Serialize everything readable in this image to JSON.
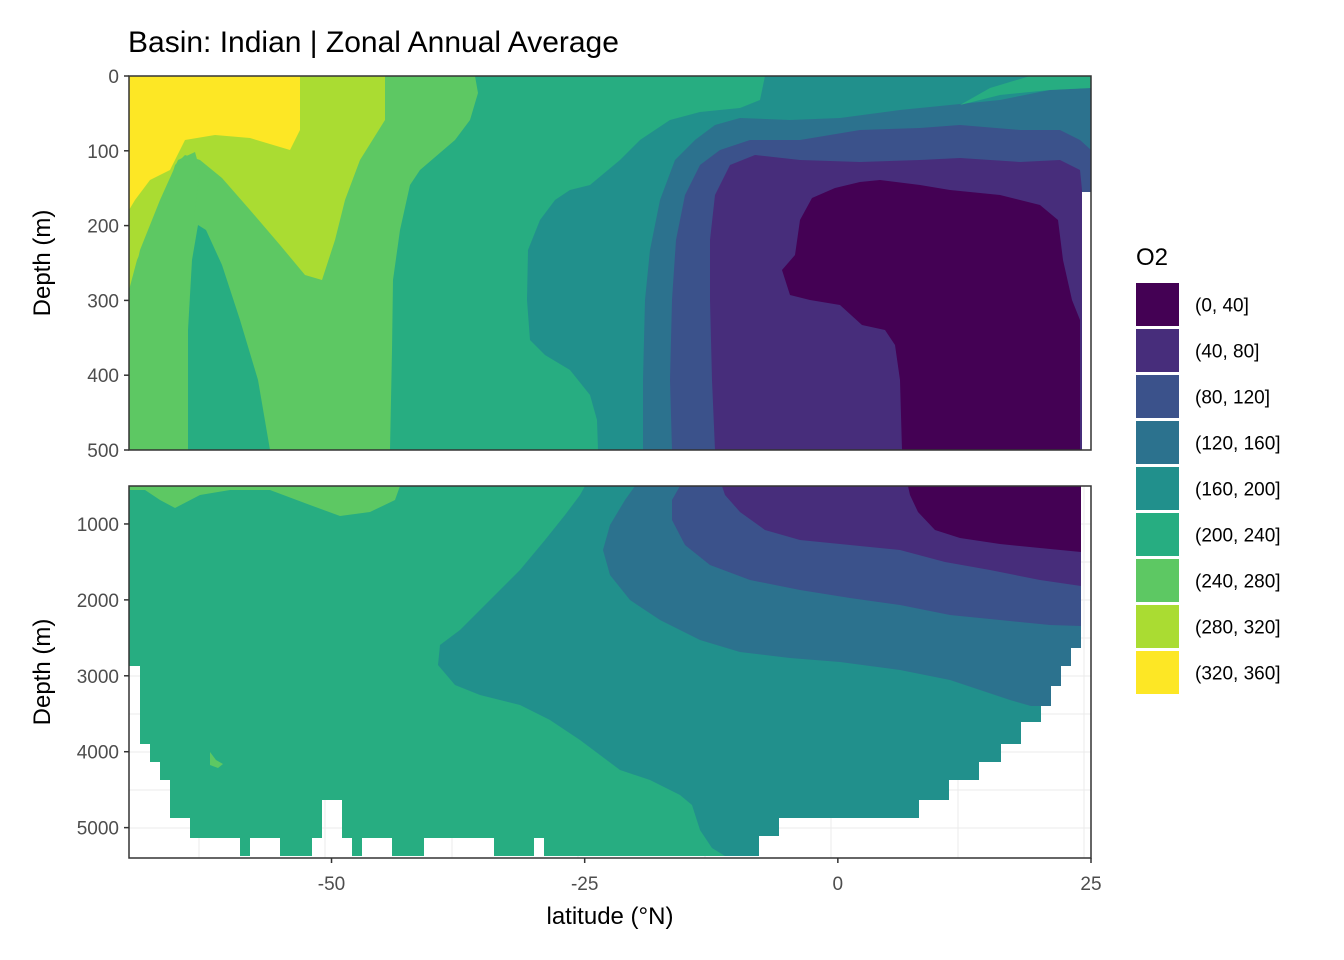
{
  "chart_data": {
    "type": "contour",
    "title": "Basin: Indian | Zonal Annual Average",
    "xlabel": "latitude (°N)",
    "ylabel": "Depth (m)",
    "xlim": [
      -70,
      25
    ],
    "x_ticks": [
      -50,
      -25,
      0,
      25
    ],
    "panels": [
      {
        "name": "upper",
        "ylim": [
          0,
          500
        ],
        "y_ticks": [
          0,
          100,
          200,
          300,
          400,
          500
        ],
        "y_reversed": true
      },
      {
        "name": "lower",
        "ylim": [
          500,
          5400
        ],
        "y_ticks": [
          1000,
          2000,
          3000,
          4000,
          5000
        ],
        "y_reversed": true
      }
    ],
    "legend": {
      "title": "O2",
      "position": "right",
      "items": [
        {
          "label": "(0, 40]",
          "color": "#440154"
        },
        {
          "label": "(40, 80]",
          "color": "#472D7B"
        },
        {
          "label": "(80, 120]",
          "color": "#3B528B"
        },
        {
          "label": "(120, 160]",
          "color": "#2C728E"
        },
        {
          "label": "(160, 200]",
          "color": "#21908C"
        },
        {
          "label": "(200, 240]",
          "color": "#27AD81"
        },
        {
          "label": "(240, 280]",
          "color": "#5DC863"
        },
        {
          "label": "(280, 320]",
          "color": "#AADC32"
        },
        {
          "label": "(320, 360]",
          "color": "#FDE725"
        }
      ]
    },
    "grid": true,
    "upper_contours": [
      {
        "level": "(160, 200]",
        "boundary": [
          [
            -70,
            0
          ],
          [
            -12.5,
            0
          ],
          [
            -10,
            30
          ],
          [
            -8,
            80
          ],
          [
            -5,
            120
          ],
          [
            -3,
            170
          ],
          [
            5,
            200
          ],
          [
            25,
            200
          ],
          [
            25,
            500
          ],
          [
            -19,
            500
          ],
          [
            -19,
            450
          ],
          [
            -27,
            370
          ],
          [
            -29,
            340
          ],
          [
            -30,
            250
          ],
          [
            -28,
            150
          ],
          [
            -29,
            120
          ],
          [
            -35,
            100
          ],
          [
            -40,
            20
          ],
          [
            -40,
            0
          ]
        ]
      },
      {
        "level": "(120, 160]",
        "boundary": [
          [
            -20,
            500
          ],
          [
            -20,
            420
          ],
          [
            -17,
            250
          ],
          [
            -15,
            120
          ],
          [
            -10,
            80
          ],
          [
            -5,
            60
          ],
          [
            5,
            50
          ],
          [
            15,
            60
          ],
          [
            25,
            70
          ],
          [
            25,
            500
          ]
        ]
      },
      {
        "level": "(80, 120]",
        "boundary": [
          [
            -16,
            500
          ],
          [
            -16,
            200
          ],
          [
            -13,
            120
          ],
          [
            -8,
            100
          ],
          [
            5,
            110
          ],
          [
            25,
            130
          ],
          [
            25,
            500
          ]
        ]
      },
      {
        "level": "(40, 80]",
        "boundary": [
          [
            -12,
            500
          ],
          [
            -12,
            300
          ],
          [
            -11,
            180
          ],
          [
            -8,
            130
          ],
          [
            0,
            115
          ],
          [
            10,
            130
          ],
          [
            25,
            150
          ],
          [
            25,
            500
          ]
        ]
      },
      {
        "level": "(0, 40]",
        "boundary": [
          [
            7,
            500
          ],
          [
            6,
            340
          ],
          [
            3,
            320
          ],
          [
            -3,
            300
          ],
          [
            -4,
            260
          ],
          [
            -2,
            200
          ],
          [
            1,
            160
          ],
          [
            5,
            140
          ],
          [
            10,
            150
          ],
          [
            17,
            170
          ],
          [
            22,
            190
          ],
          [
            24,
            300
          ],
          [
            24,
            500
          ]
        ]
      }
    ]
  }
}
